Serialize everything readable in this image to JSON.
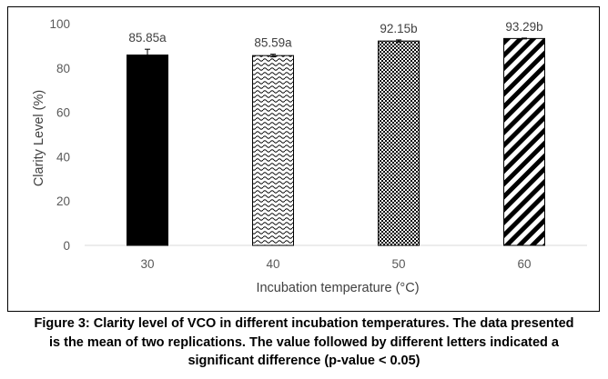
{
  "chart_data": {
    "type": "bar",
    "categories": [
      "30",
      "40",
      "50",
      "60"
    ],
    "values": [
      85.85,
      85.59,
      92.15,
      93.29
    ],
    "errors": [
      2.6,
      0.6,
      0.5,
      0.2
    ],
    "data_labels": [
      "85.85a",
      "85.59a",
      "92.15b",
      "93.29b"
    ],
    "patterns": [
      "solid-black",
      "wave",
      "checker",
      "diagonal-stripes"
    ],
    "xlabel": "Incubation temperature (°C)",
    "ylabel": "Clarity Level (%)",
    "ylim": [
      0,
      100
    ],
    "yticks": [
      "0",
      "20",
      "40",
      "60",
      "80",
      "100"
    ],
    "grid": false,
    "legend": "none"
  },
  "caption": {
    "line1": "Figure 3: Clarity level of VCO in different incubation temperatures. The data presented",
    "line2": "is the mean of two replications. The value followed by different letters indicated a",
    "line3": "significant difference (p-value < 0.05)"
  },
  "colors": {
    "bar_fill": "#000000",
    "background": "#ffffff",
    "axis": "#d9d9d9",
    "text": "#404040"
  }
}
